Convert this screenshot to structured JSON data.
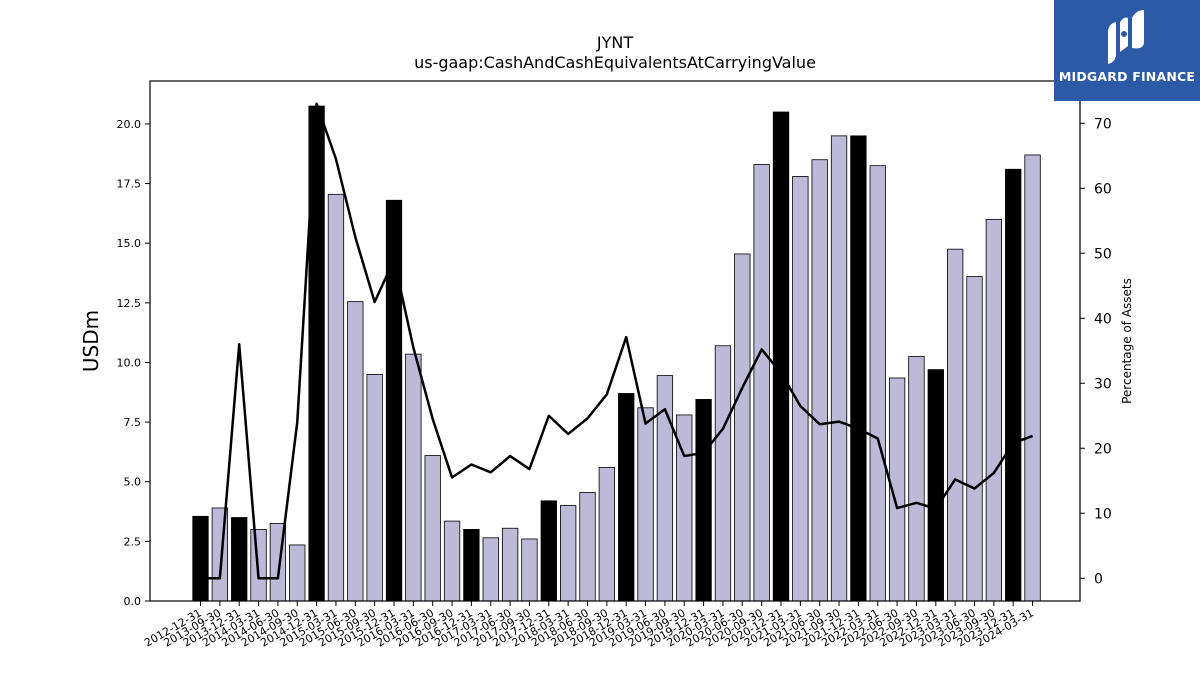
{
  "chart_data": {
    "type": "bar",
    "title": "JYNT",
    "subtitle": "us-gaap:CashAndCashEquivalentsAtCarryingValue",
    "ylabel": "USDm",
    "y2label": "Percentage of Assets",
    "ylim": [
      0,
      21.8
    ],
    "y2lim": [
      -3.5,
      76.5
    ],
    "yticks": [
      "0.0",
      "2.5",
      "5.0",
      "7.5",
      "10.0",
      "12.5",
      "15.0",
      "17.5",
      "20.0"
    ],
    "y2ticks": [
      "0",
      "10",
      "20",
      "30",
      "40",
      "50",
      "60",
      "70"
    ],
    "categories": [
      "2012-12-31",
      "2013-09-30",
      "2013-12-31",
      "2014-03-31",
      "2014-06-30",
      "2014-09-30",
      "2014-12-31",
      "2015-03-31",
      "2015-06-30",
      "2015-09-30",
      "2015-12-31",
      "2016-03-31",
      "2016-06-30",
      "2016-09-30",
      "2016-12-31",
      "2017-03-31",
      "2017-06-30",
      "2017-09-30",
      "2017-12-31",
      "2018-03-31",
      "2018-06-30",
      "2018-09-30",
      "2018-12-31",
      "2019-03-31",
      "2019-06-30",
      "2019-09-30",
      "2019-12-31",
      "2020-03-31",
      "2020-06-30",
      "2020-09-30",
      "2020-12-31",
      "2021-03-31",
      "2021-06-30",
      "2021-09-30",
      "2021-12-31",
      "2022-03-31",
      "2022-06-30",
      "2022-09-30",
      "2022-12-31",
      "2023-03-31",
      "2023-06-30",
      "2023-09-30",
      "2023-12-31",
      "2024-03-31"
    ],
    "series": [
      {
        "values": [
          3.55,
          3.9,
          3.5,
          3.0,
          3.25,
          2.35,
          20.75,
          17.05,
          12.55,
          9.5,
          16.8,
          10.35,
          6.1,
          3.35,
          3.0,
          2.65,
          3.05,
          2.6,
          4.2,
          4.0,
          4.55,
          5.6,
          8.7,
          8.1,
          9.45,
          7.8,
          8.45,
          10.7,
          14.55,
          18.3,
          20.5,
          17.8,
          18.5,
          19.5,
          19.5,
          18.25,
          9.35,
          10.25,
          9.7,
          14.75,
          13.6,
          16.0,
          18.1,
          18.7
        ],
        "highlight": [
          true,
          false,
          true,
          false,
          false,
          false,
          true,
          false,
          false,
          false,
          true,
          false,
          false,
          false,
          true,
          false,
          false,
          false,
          true,
          false,
          false,
          false,
          true,
          false,
          false,
          false,
          true,
          false,
          false,
          false,
          true,
          false,
          false,
          false,
          true,
          false,
          false,
          false,
          true,
          false,
          false,
          false,
          true,
          false
        ]
      },
      {
        "axis": "secondary",
        "values": [
          0.0,
          0.0,
          36.0,
          0.0,
          0.0,
          24.0,
          73.0,
          64.5,
          52.5,
          42.5,
          49.0,
          35.5,
          24.5,
          15.5,
          17.5,
          16.3,
          18.8,
          16.8,
          25.0,
          22.2,
          24.6,
          28.3,
          37.1,
          23.8,
          26.0,
          18.8,
          19.3,
          23.0,
          29.3,
          35.2,
          31.6,
          26.5,
          23.7,
          24.1,
          23.0,
          21.5,
          10.8,
          11.6,
          10.7,
          15.2,
          13.8,
          16.2,
          20.8,
          21.9
        ]
      }
    ],
    "colors": {
      "highlight_bar": "#000000",
      "bar": "#bcb9d9",
      "bar_edge": "#000000",
      "line": "#000000"
    },
    "grid": false,
    "legend": "none"
  },
  "logo": {
    "text": "MIDGARD FINANCE",
    "icon": "midgard-m-logo-icon",
    "color": "#2d5aa7"
  }
}
